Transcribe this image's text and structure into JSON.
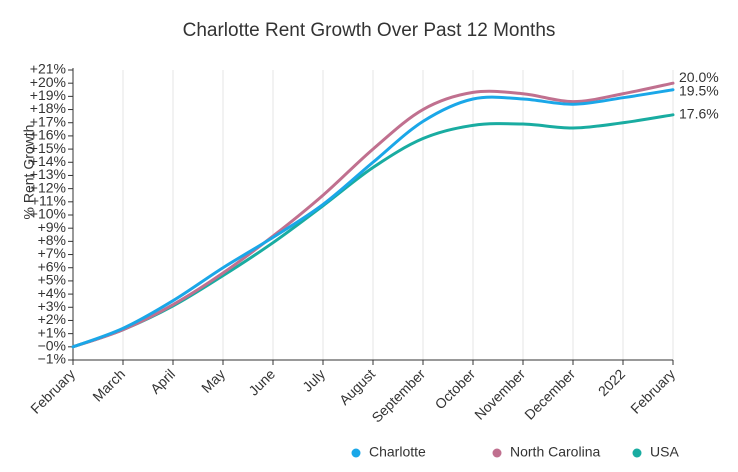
{
  "chart_data": {
    "type": "line",
    "title": "Charlotte Rent Growth Over Past 12 Months",
    "ylabel": "% Rent Growth",
    "xlabel": "",
    "x": [
      "February",
      "March",
      "April",
      "May",
      "June",
      "July",
      "August",
      "September",
      "October",
      "November",
      "December",
      "2022",
      "February"
    ],
    "ylim": [
      -1,
      21
    ],
    "y_tick_labels": [
      "−1%",
      "−0%",
      "+1%",
      "+2%",
      "+3%",
      "+4%",
      "+5%",
      "+6%",
      "+7%",
      "+8%",
      "+9%",
      "+10%",
      "+11%",
      "+12%",
      "+13%",
      "+14%",
      "+15%",
      "+16%",
      "+17%",
      "+18%",
      "+19%",
      "+20%",
      "+21%"
    ],
    "legend_position": "bottom-right",
    "series": [
      {
        "name": "Charlotte",
        "color": "#1aa7e8",
        "values": [
          0,
          1.4,
          3.5,
          6.0,
          8.3,
          10.8,
          14.0,
          17.1,
          18.8,
          18.8,
          18.4,
          18.9,
          19.5
        ],
        "end_label": "19.5%"
      },
      {
        "name": "North Carolina",
        "color": "#c0708f",
        "values": [
          0,
          1.3,
          3.2,
          5.6,
          8.4,
          11.5,
          15.0,
          18.0,
          19.3,
          19.2,
          18.6,
          19.2,
          20.0
        ],
        "end_label": "20.0%"
      },
      {
        "name": "USA",
        "color": "#19aca1",
        "values": [
          0,
          1.3,
          3.1,
          5.4,
          7.9,
          10.7,
          13.6,
          15.8,
          16.8,
          16.9,
          16.6,
          17.0,
          17.6
        ],
        "end_label": "17.6%"
      }
    ]
  }
}
